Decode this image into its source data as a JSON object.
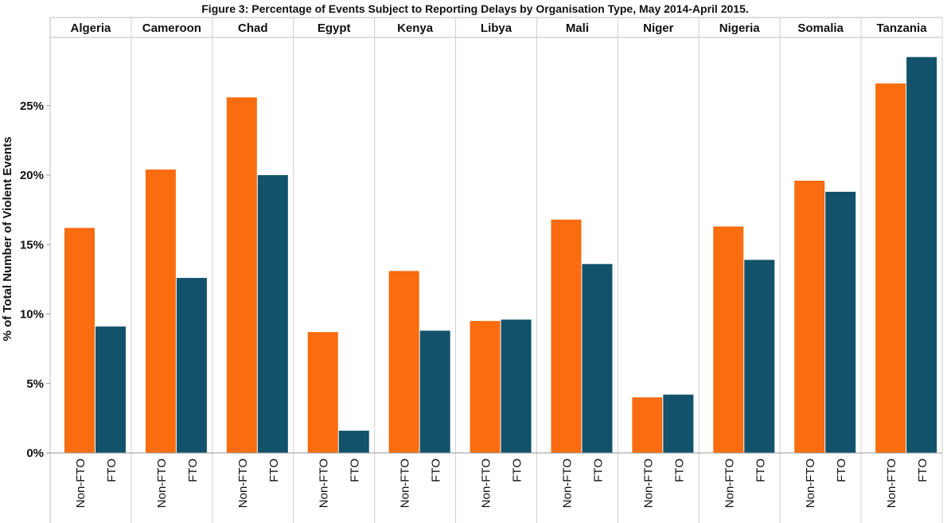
{
  "chart_data": {
    "type": "bar",
    "title": "Figure 3: Percentage of Events Subject to Reporting Delays by Organisation Type, May 2014-April 2015.",
    "ylabel": "% of Total Number of Violent Events",
    "xlabel": "",
    "ylim": [
      0,
      30
    ],
    "yticks": [
      0,
      5,
      10,
      15,
      20,
      25
    ],
    "ytick_labels": [
      "0%",
      "5%",
      "10%",
      "15%",
      "20%",
      "25%"
    ],
    "grid": "vertical panel separators only",
    "legend": "none",
    "categories": [
      "Non-FTO",
      "FTO"
    ],
    "colors": {
      "Non-FTO": "#F96C0F",
      "FTO": "#12526B"
    },
    "panels": [
      {
        "name": "Algeria",
        "values": [
          16.2,
          9.1
        ]
      },
      {
        "name": "Cameroon",
        "values": [
          20.4,
          12.6
        ]
      },
      {
        "name": "Chad",
        "values": [
          25.6,
          20.0
        ]
      },
      {
        "name": "Egypt",
        "values": [
          8.7,
          1.6
        ]
      },
      {
        "name": "Kenya",
        "values": [
          13.1,
          8.8
        ]
      },
      {
        "name": "Libya",
        "values": [
          9.5,
          9.6
        ]
      },
      {
        "name": "Mali",
        "values": [
          16.8,
          13.6
        ]
      },
      {
        "name": "Niger",
        "values": [
          4.0,
          4.2
        ]
      },
      {
        "name": "Nigeria",
        "values": [
          16.3,
          13.9
        ]
      },
      {
        "name": "Somalia",
        "values": [
          19.6,
          18.8
        ]
      },
      {
        "name": "Tanzania",
        "values": [
          26.6,
          28.5
        ]
      }
    ]
  }
}
